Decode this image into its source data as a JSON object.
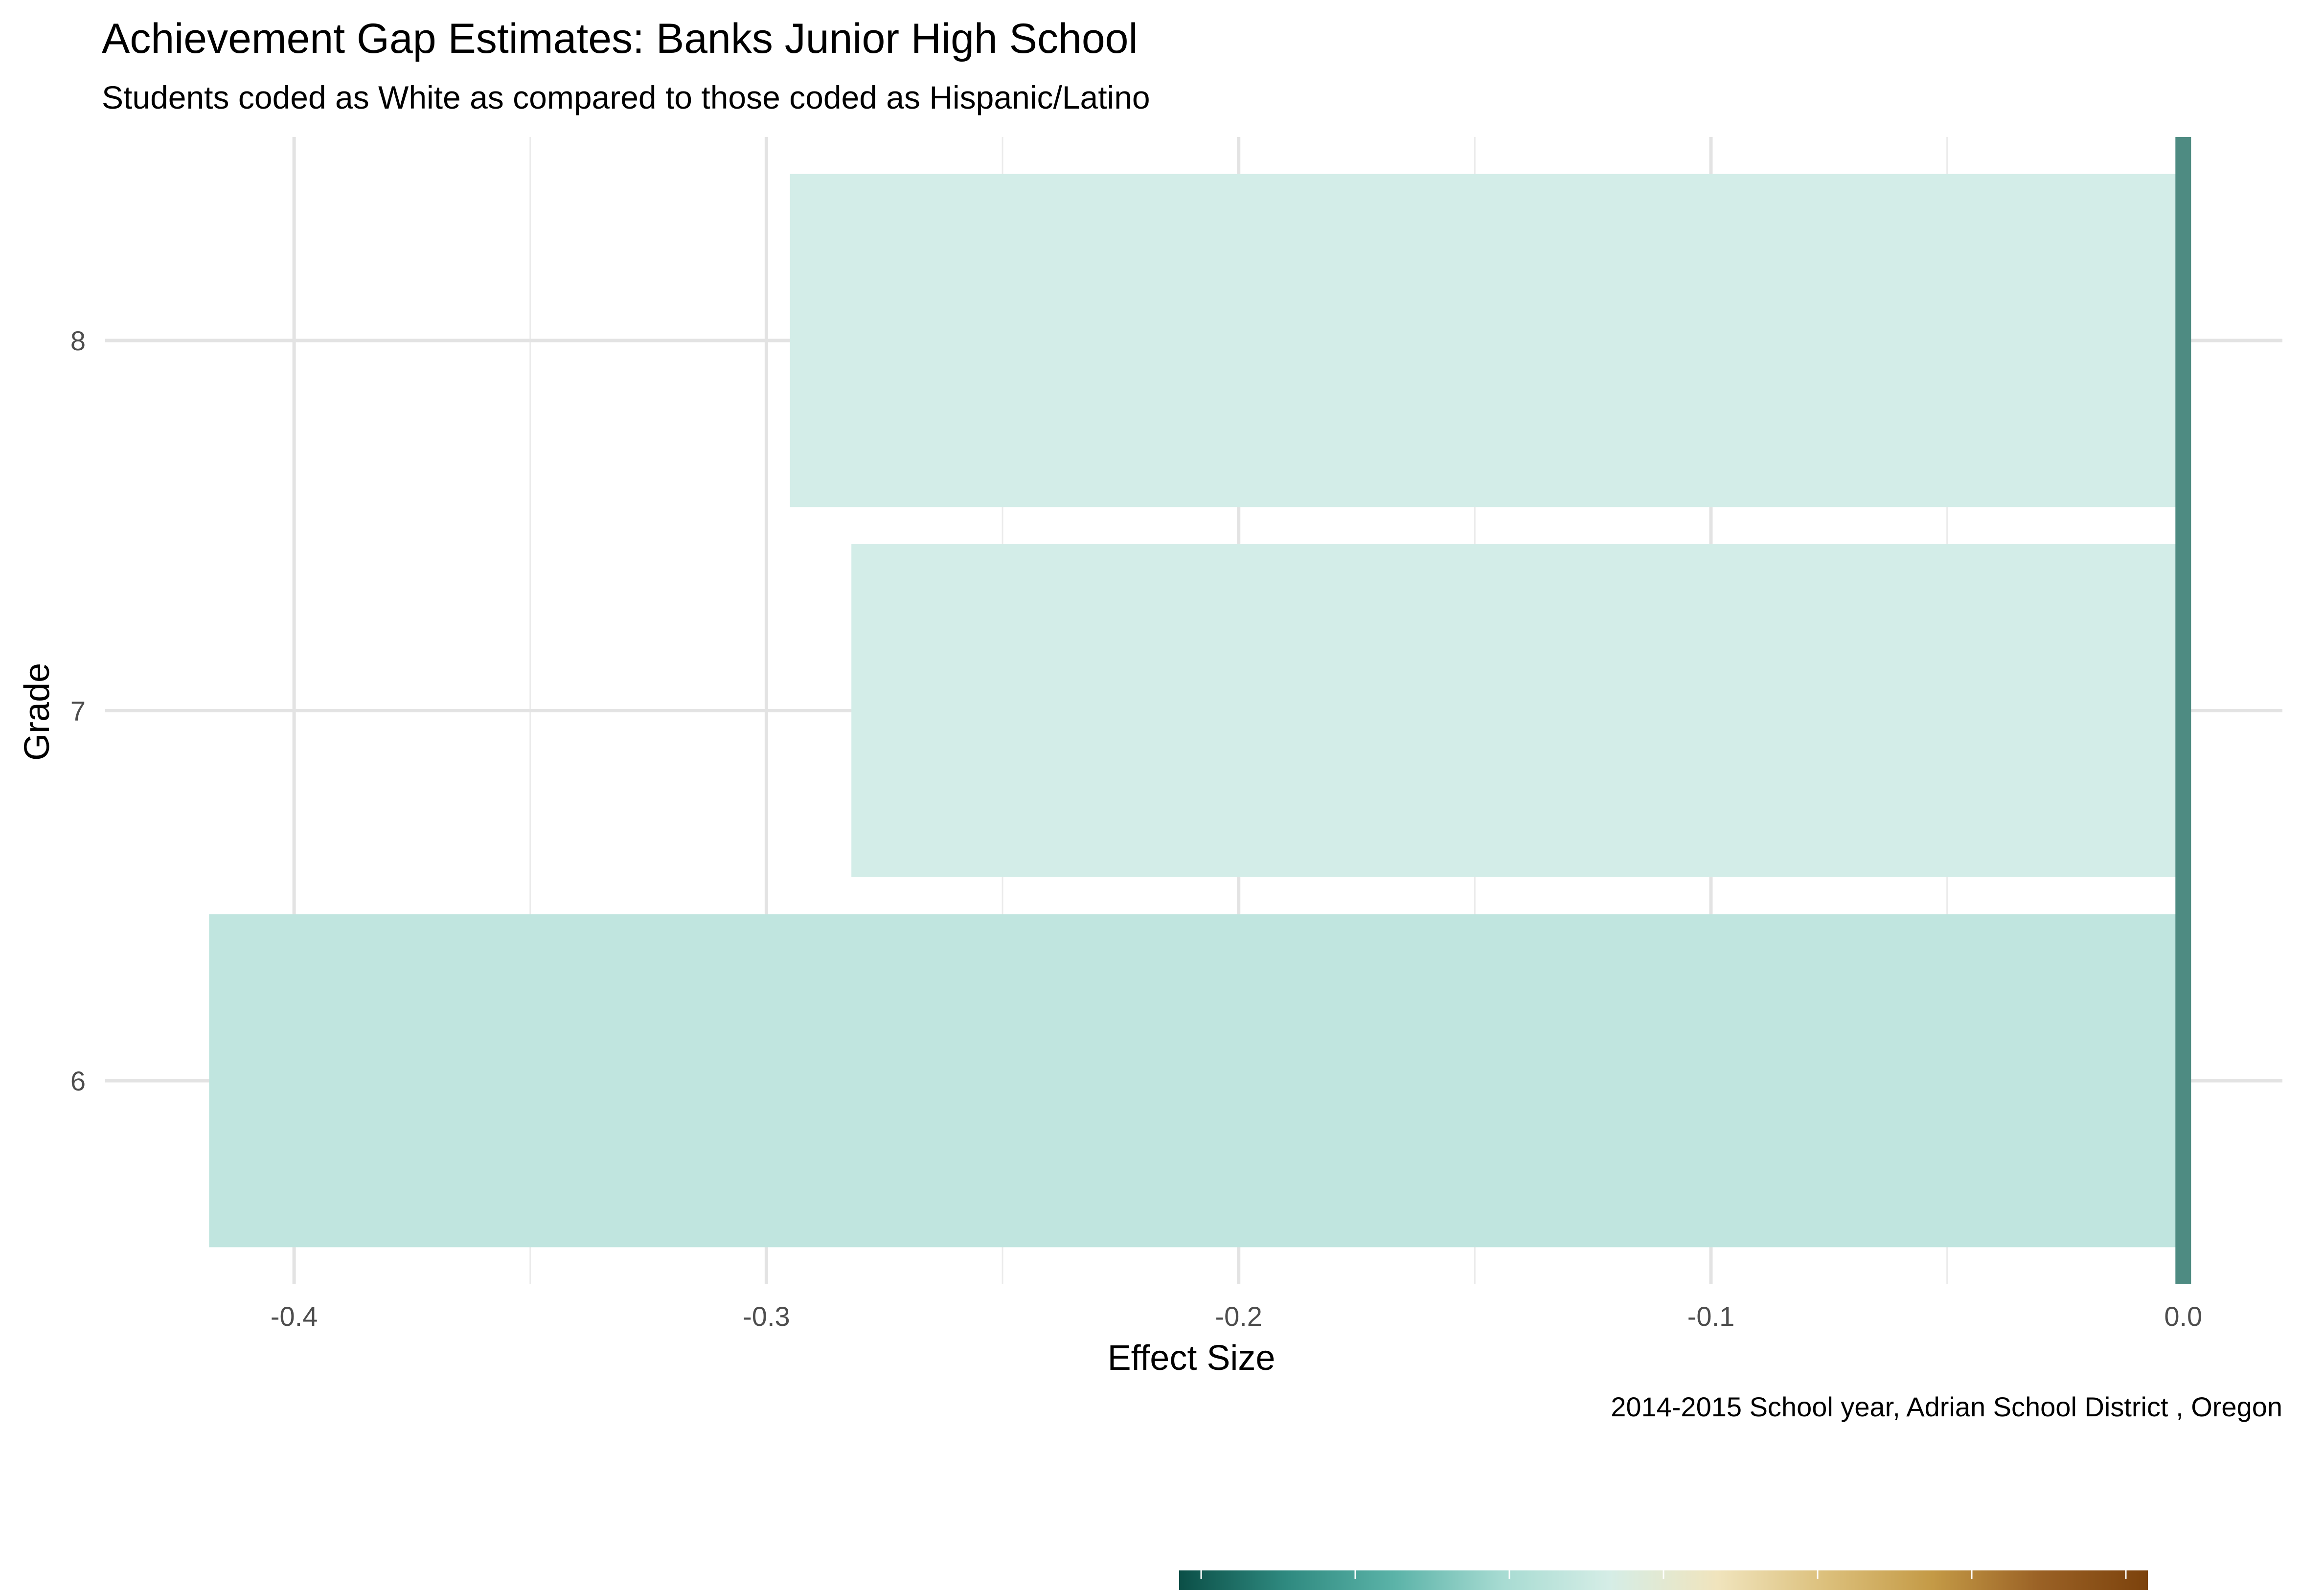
{
  "chart_data": {
    "type": "bar",
    "orientation": "horizontal",
    "title": "Achievement Gap Estimates: Banks Junior High School",
    "subtitle": "Students coded as White as compared to those coded as Hispanic/Latino",
    "xlabel": "Effect Size",
    "ylabel": "Grade",
    "caption": "2014-2015 School year,  Adrian School District , Oregon",
    "categories": [
      "6",
      "7",
      "8"
    ],
    "values": [
      -0.418,
      -0.282,
      -0.295
    ],
    "bar_colors": [
      "#c0e5df",
      "#d3ede8",
      "#d3ede8"
    ],
    "xlim": [
      -0.44,
      0.021
    ],
    "x_ticks": [
      -0.4,
      -0.3,
      -0.2,
      -0.1,
      0.0
    ],
    "x_tick_labels": [
      "-0.4",
      "-0.3",
      "-0.2",
      "-0.1",
      "0.0"
    ],
    "reference_line": {
      "x": 0.0,
      "color": "#4e8b82"
    },
    "grid": true,
    "legend": {
      "type": "colorbar",
      "position": "bottom",
      "colors": [
        "#0b4f47",
        "#2f8a80",
        "#5bb3a8",
        "#a7dbd2",
        "#d5ede6",
        "#f0e4bd",
        "#dcc07c",
        "#c49a46",
        "#9a6125",
        "#7c420c"
      ]
    }
  }
}
